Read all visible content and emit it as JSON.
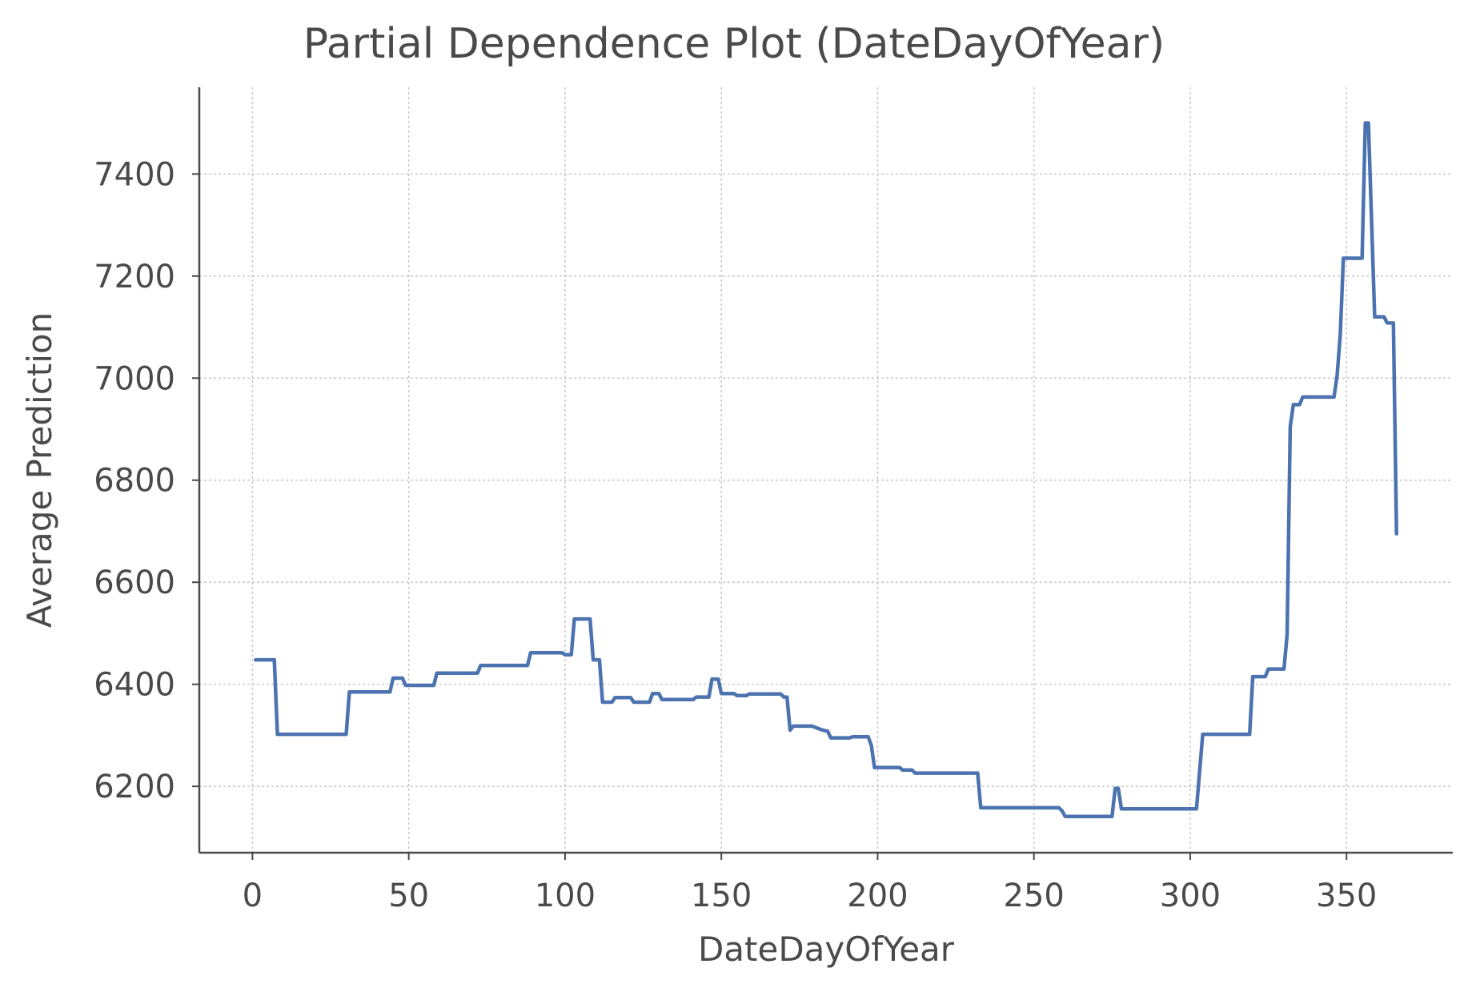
{
  "chart_data": {
    "type": "line",
    "title": "Partial Dependence Plot (DateDayOfYear)",
    "xlabel": "DateDayOfYear",
    "ylabel": "Average Prediction",
    "xlim": [
      -17,
      384
    ],
    "ylim": [
      6070,
      7570
    ],
    "xticks": [
      0,
      50,
      100,
      150,
      200,
      250,
      300,
      350
    ],
    "yticks": [
      6200,
      6400,
      6600,
      6800,
      7000,
      7200,
      7400
    ],
    "grid": true,
    "series_color": "#4c72b0",
    "x": [
      1,
      7,
      8,
      30,
      31,
      44,
      45,
      48,
      49,
      58,
      59,
      72,
      73,
      88,
      89,
      99,
      100,
      102,
      103,
      108,
      109,
      111,
      112,
      115,
      116,
      121,
      122,
      127,
      128,
      130,
      131,
      141,
      142,
      146,
      147,
      149,
      150,
      154,
      155,
      158,
      159,
      169,
      170,
      171,
      172,
      173,
      179,
      182,
      184,
      185,
      191,
      192,
      197,
      198,
      199,
      207,
      208,
      211,
      212,
      232,
      233,
      258,
      259,
      260,
      275,
      276,
      277,
      278,
      302,
      304,
      319,
      320,
      324,
      325,
      330,
      331,
      332,
      333,
      335,
      336,
      346,
      347,
      348,
      349,
      355,
      356,
      357,
      359,
      362,
      363,
      365,
      366
    ],
    "y": [
      6448,
      6448,
      6302,
      6302,
      6385,
      6385,
      6412,
      6412,
      6398,
      6398,
      6422,
      6422,
      6437,
      6437,
      6462,
      6462,
      6458,
      6458,
      6528,
      6528,
      6448,
      6448,
      6365,
      6365,
      6374,
      6374,
      6365,
      6365,
      6382,
      6382,
      6370,
      6370,
      6375,
      6375,
      6410,
      6410,
      6382,
      6382,
      6378,
      6378,
      6381,
      6381,
      6375,
      6375,
      6310,
      6318,
      6318,
      6311,
      6308,
      6295,
      6295,
      6297,
      6297,
      6280,
      6237,
      6237,
      6232,
      6232,
      6226,
      6226,
      6158,
      6158,
      6152,
      6141,
      6141,
      6196,
      6196,
      6156,
      6156,
      6302,
      6302,
      6415,
      6415,
      6430,
      6430,
      6497,
      6905,
      6948,
      6948,
      6963,
      6963,
      7005,
      7085,
      7235,
      7235,
      7500,
      7500,
      7120,
      7120,
      7108,
      7108,
      6695
    ]
  }
}
